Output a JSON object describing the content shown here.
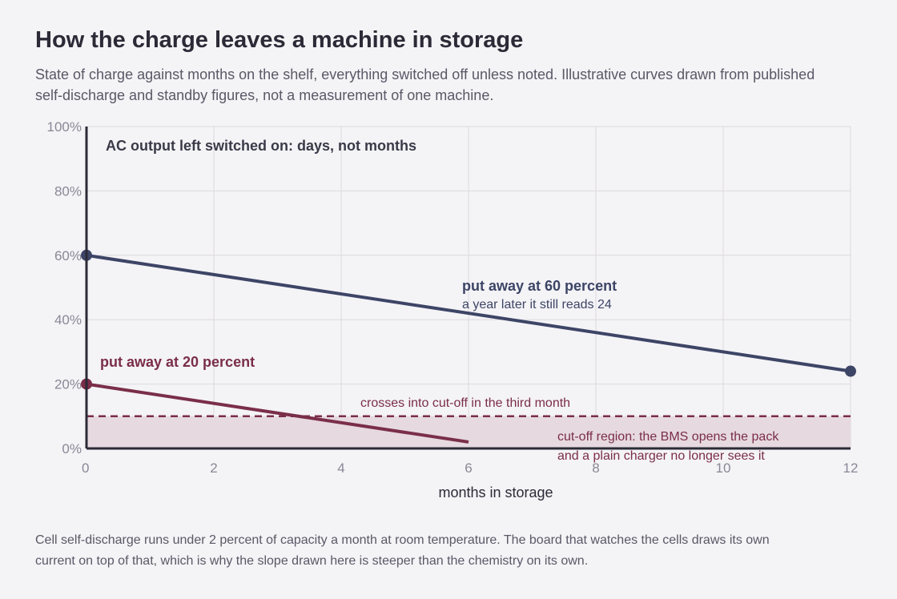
{
  "header": {
    "title": "How the charge leaves a machine in storage",
    "subtitle": "State of charge against months on the shelf, everything switched off unless noted. Illustrative curves drawn from published self-discharge and standby figures, not a measurement of one machine."
  },
  "footnote": "Cell self-discharge runs under 2 percent of capacity a month at room temperature. The board that watches the cells draws its own current on top of that, which is why the slope drawn here is steeper than the chemistry on its own.",
  "colors": {
    "series_60": "#3d4566",
    "series_20": "#7a2e48",
    "cutoff_fill": "#e6d9df",
    "grid": "#dcdae0",
    "axis": "#2b2a36"
  },
  "chart_data": {
    "type": "line",
    "xlabel": "months in storage",
    "ylabel": "",
    "xlim": [
      0,
      12
    ],
    "ylim": [
      0,
      100
    ],
    "x_ticks": [
      0,
      2,
      4,
      6,
      8,
      10,
      12
    ],
    "x_tick_labels": [
      "0",
      "2",
      "4",
      "6",
      "8",
      "10",
      "12"
    ],
    "y_ticks": [
      0,
      20,
      40,
      60,
      80,
      100
    ],
    "y_tick_labels": [
      "0%",
      "20%",
      "40%",
      "60%",
      "80%",
      "100%"
    ],
    "grid": true,
    "series": [
      {
        "name": "put away at 60 percent",
        "x": [
          0,
          12
        ],
        "y": [
          60,
          24
        ],
        "note": "a year later it still reads 24",
        "color": "#3d4566"
      },
      {
        "name": "put away at 20 percent",
        "x": [
          0,
          6
        ],
        "y": [
          20,
          2
        ],
        "color": "#7a2e48"
      }
    ],
    "cutoff": {
      "y": 10,
      "label": "crosses into cut-off in the third month",
      "region_label_line1": "cut-off region: the BMS opens the pack",
      "region_label_line2": "and a plain charger no longer sees it"
    },
    "annotation_ac": "AC output left switched on: days, not months"
  }
}
